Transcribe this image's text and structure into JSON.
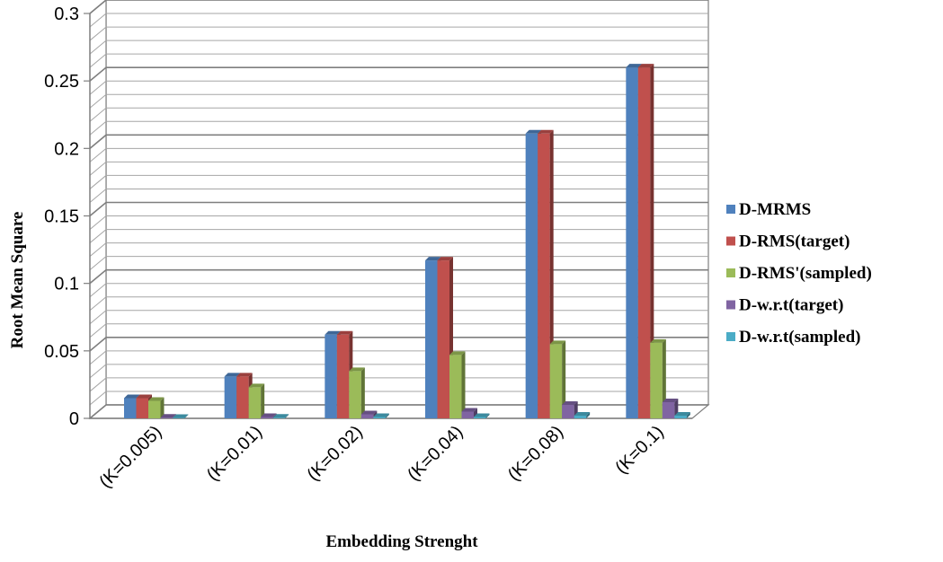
{
  "chart_data": {
    "type": "bar",
    "title": "",
    "xlabel": "Embedding Strenght",
    "ylabel": "Root Mean Square",
    "ylim": [
      0,
      0.3
    ],
    "ytick_step": 0.05,
    "y_tick_labels": [
      "0",
      "0.05",
      "0.1",
      "0.15",
      "0.2",
      "0.25",
      "0.3"
    ],
    "categories": [
      "(K=0.005)",
      "(K=0.01)",
      "(K=0.02)",
      "(K=0.04)",
      "(K=0.08)",
      "(K=0.1)"
    ],
    "grid": true,
    "legend": "right",
    "series": [
      {
        "name": "D-MRMS",
        "color": "#4f81bd",
        "values": [
          0.015,
          0.031,
          0.062,
          0.117,
          0.211,
          0.26
        ]
      },
      {
        "name": "D-RMS(target)",
        "color": "#c0504d",
        "values": [
          0.015,
          0.031,
          0.062,
          0.117,
          0.211,
          0.26
        ]
      },
      {
        "name": "D-RMS'(sampled)",
        "color": "#9bbb59",
        "values": [
          0.013,
          0.023,
          0.035,
          0.047,
          0.055,
          0.056
        ]
      },
      {
        "name": "D-w.r.t(target)",
        "color": "#8064a2",
        "values": [
          0.0005,
          0.001,
          0.003,
          0.005,
          0.01,
          0.012
        ]
      },
      {
        "name": "D-w.r.t(sampled)",
        "color": "#4bacc6",
        "values": [
          0.0003,
          0.0005,
          0.001,
          0.001,
          0.002,
          0.002
        ]
      }
    ]
  }
}
